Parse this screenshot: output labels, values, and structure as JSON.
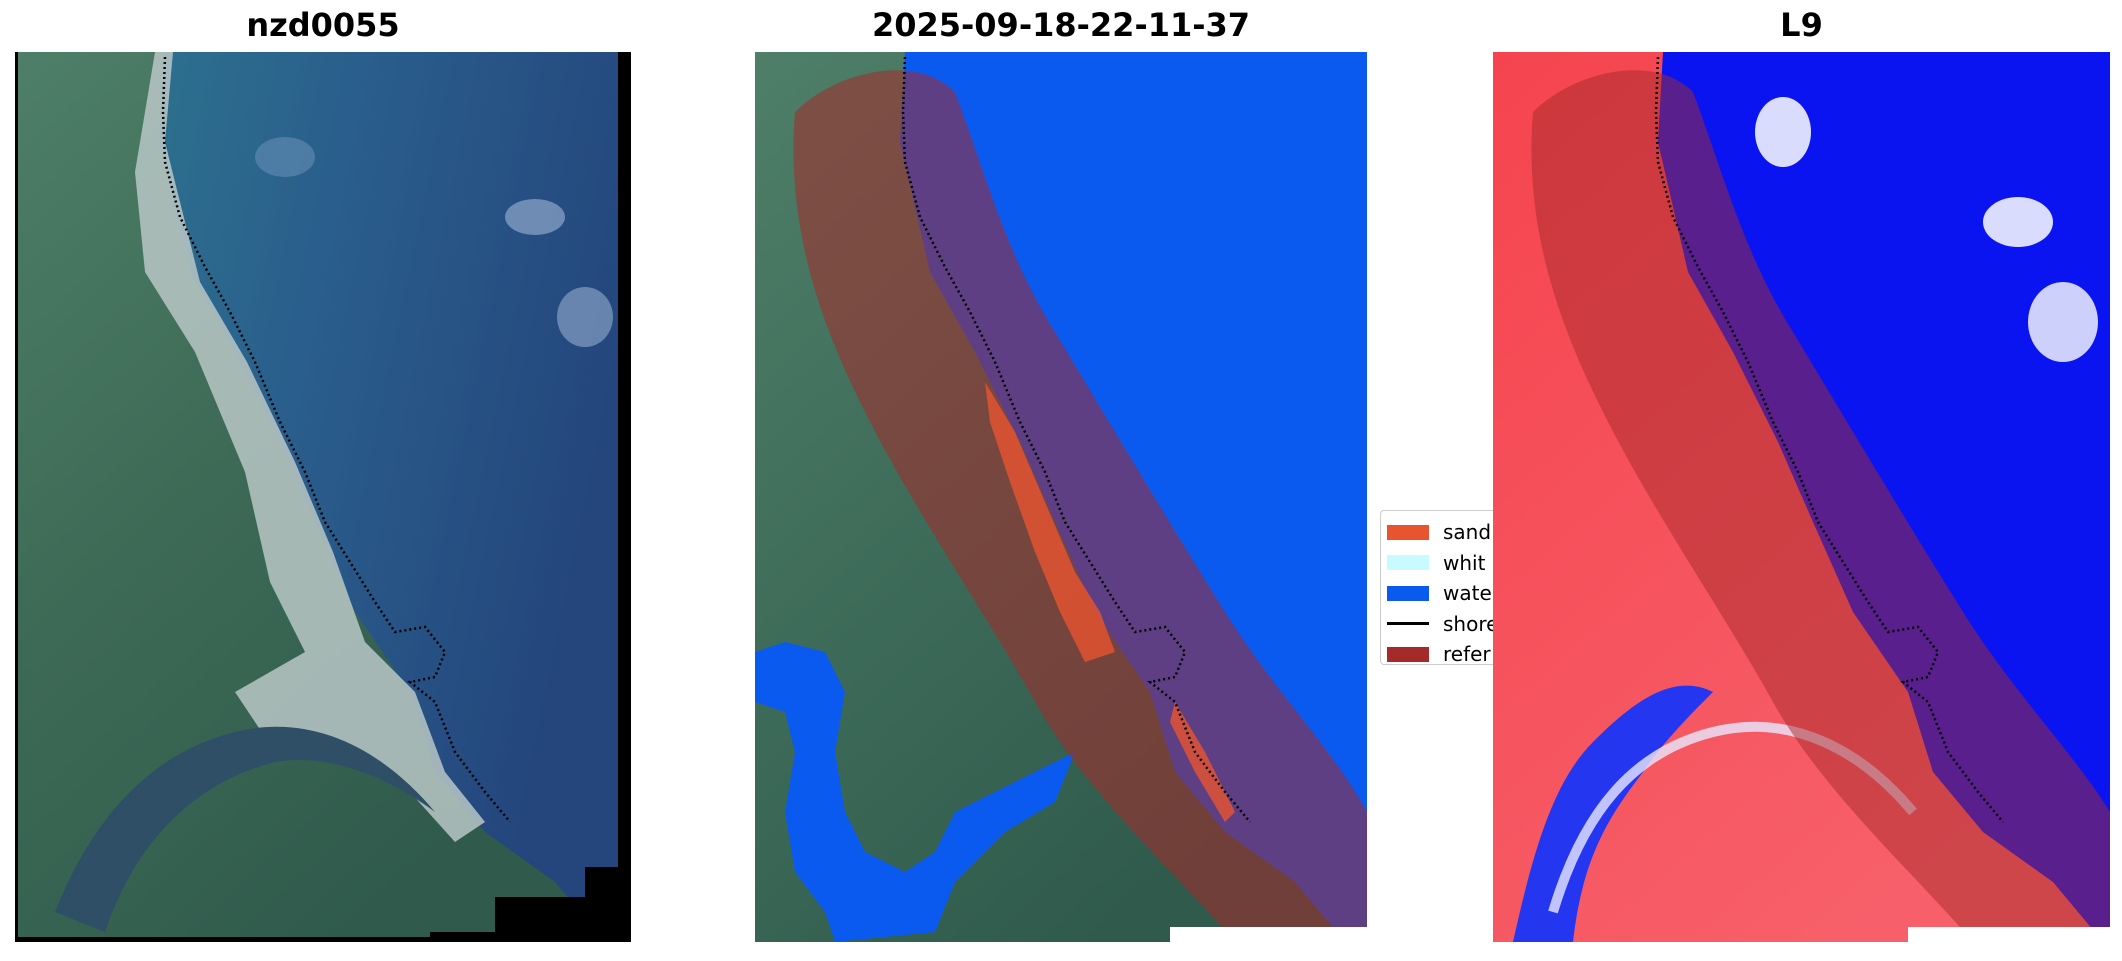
{
  "panels": [
    {
      "title": "nzd0055",
      "content": "RGB satellite image with dotted shoreline"
    },
    {
      "title": "2025-09-18-22-11-37",
      "content": "Classified image overlay"
    },
    {
      "title": "L9",
      "content": "Index image overlay"
    }
  ],
  "legend": {
    "items": [
      {
        "label": "sand",
        "color": "#e8542f",
        "kind": "patch"
      },
      {
        "label": "whit",
        "color": "#c8fbff",
        "kind": "patch"
      },
      {
        "label": "wate",
        "color": "#0b5af0",
        "kind": "patch"
      },
      {
        "label": "shore",
        "color": "#000000",
        "kind": "line"
      },
      {
        "label": "refer",
        "color": "#a52a2a",
        "kind": "patch"
      }
    ]
  },
  "colors": {
    "sand": "#e8542f",
    "white_water": "#c8fbff",
    "water": "#0b5af0",
    "reference_buffer": "#a52a2a",
    "index_water": "#0a14f0",
    "index_land": "#f5444f"
  }
}
